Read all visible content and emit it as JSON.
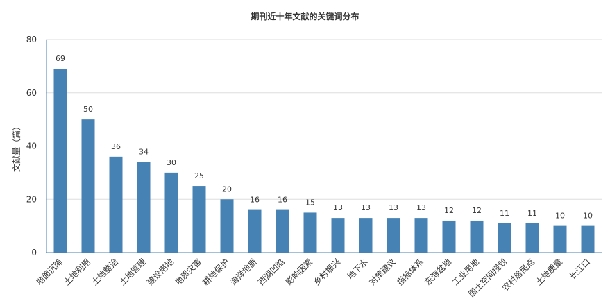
{
  "chart_data": {
    "type": "bar",
    "title": "期刊近十年文献的关键词分布",
    "ylabel": "文献量（篇）",
    "xlabel": "",
    "ylim": [
      0,
      80
    ],
    "yticks": [
      0,
      20,
      40,
      60,
      80
    ],
    "grid": true,
    "categories": [
      "地面沉降",
      "土地利用",
      "土地整治",
      "土地管理",
      "建设用地",
      "地质灾害",
      "耕地保护",
      "海洋地质",
      "西湖凹陷",
      "影响因素",
      "乡村振兴",
      "地下水",
      "对策建议",
      "指标体系",
      "东海盆地",
      "工业用地",
      "国土空间规划",
      "农村居民点",
      "土地质量",
      "长江口"
    ],
    "values": [
      69,
      50,
      36,
      34,
      30,
      25,
      20,
      16,
      16,
      15,
      13,
      13,
      13,
      13,
      12,
      12,
      11,
      11,
      10,
      10
    ],
    "colors": {
      "bar": "#4682b4",
      "grid": "#dddddd",
      "axis": "#4682b4",
      "text": "#333333"
    }
  }
}
